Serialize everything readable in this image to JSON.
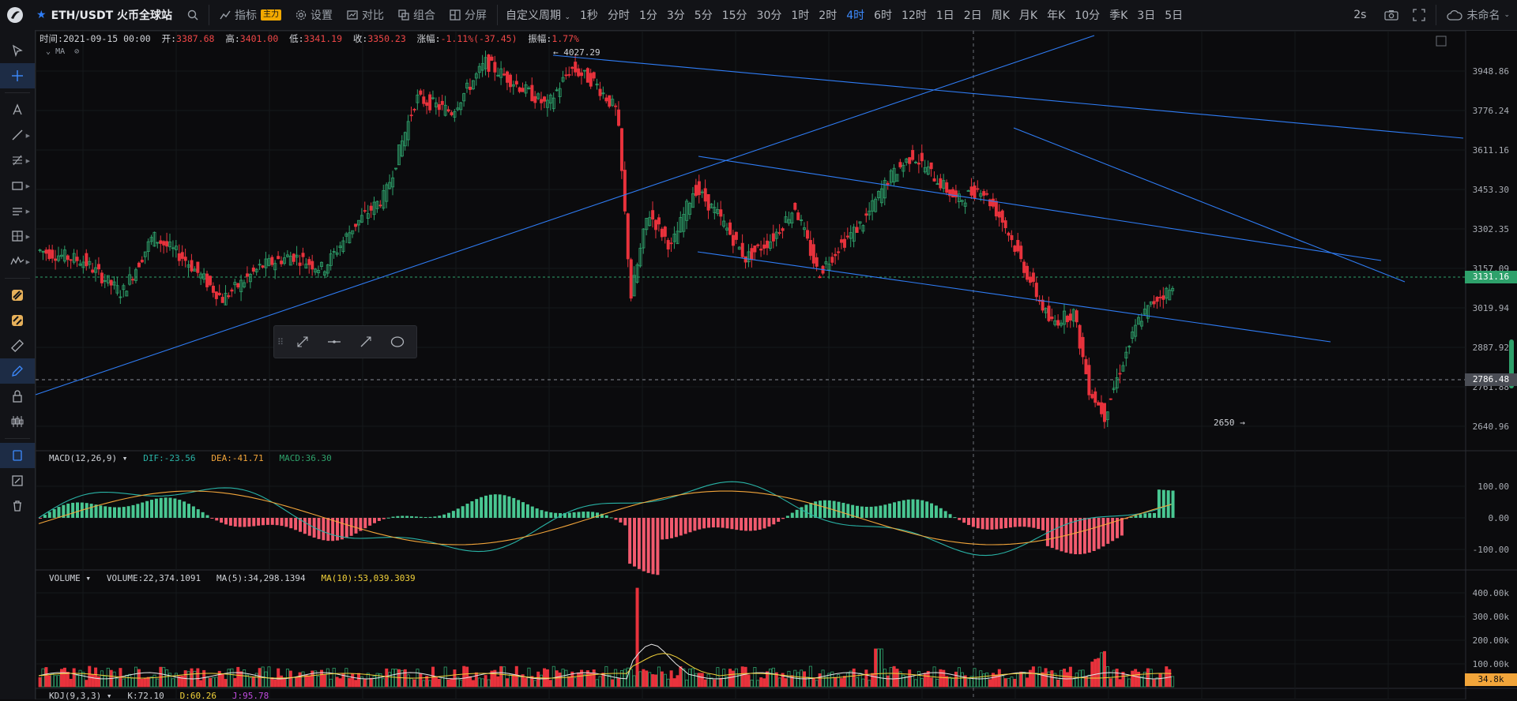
{
  "topbar": {
    "symbol": "ETH/USDT 火币全球站",
    "indicator_label": "指标",
    "indicator_badge": "主力",
    "settings_label": "设置",
    "compare_label": "对比",
    "combine_label": "组合",
    "split_label": "分屏",
    "custom_period_label": "自定义周期",
    "periods": [
      "1秒",
      "分时",
      "1分",
      "3分",
      "5分",
      "15分",
      "30分",
      "1时",
      "2时",
      "4时",
      "6时",
      "12时",
      "1日",
      "2日",
      "周K",
      "月K",
      "年K",
      "10分",
      "季K",
      "3日",
      "5日"
    ],
    "active_period": "4时",
    "interval": "2s",
    "account": "未命名"
  },
  "infobar": {
    "time_label": "时间:",
    "time": "2021-09-15 00:00",
    "open_label": "开:",
    "open": "3387.68",
    "high_label": "高:",
    "high": "3401.00",
    "low_label": "低:",
    "low": "3341.19",
    "close_label": "收:",
    "close": "3350.23",
    "change_label": "涨幅:",
    "change": "-1.11%(-37.45)",
    "amp_label": "振幅:",
    "amp": "1.77%"
  },
  "ma_tag": "MA",
  "price_axis": [
    "3948.86",
    "3776.24",
    "3611.16",
    "3453.30",
    "3302.35",
    "3157.09",
    "3019.94",
    "2887.92",
    "2761.88",
    "2640.96"
  ],
  "last_price": "3131.16",
  "crosshair_price": "2786.48",
  "annotations": {
    "high": "4027.29",
    "low": "2650"
  },
  "macd": {
    "title": "MACD(12,26,9)",
    "dif_label": "DIF:",
    "dif": "-23.56",
    "dea_label": "DEA:",
    "dea": "-41.71",
    "macd_label": "MACD:",
    "macd": "36.30",
    "axis": [
      "100.00",
      "0.00",
      "-100.00"
    ]
  },
  "volume": {
    "title": "VOLUME",
    "vol_label": "VOLUME:",
    "vol": "22,374.1091",
    "ma5_label": "MA(5):",
    "ma5": "34,298.1394",
    "ma10_label": "MA(10):",
    "ma10": "53,039.3039",
    "axis": [
      "400.00k",
      "300.00k",
      "200.00k",
      "100.00k"
    ],
    "last": "34.8k"
  },
  "kdj": {
    "title": "KDJ(9,3,3)",
    "k": "K:72.10",
    "d": "D:60.26",
    "j": "J:95.78"
  },
  "colors": {
    "up": "#2ea16b",
    "down": "#e8323c",
    "accent": "#2f7df6",
    "dif": "#29b3a6",
    "dea": "#f2a53a"
  }
}
